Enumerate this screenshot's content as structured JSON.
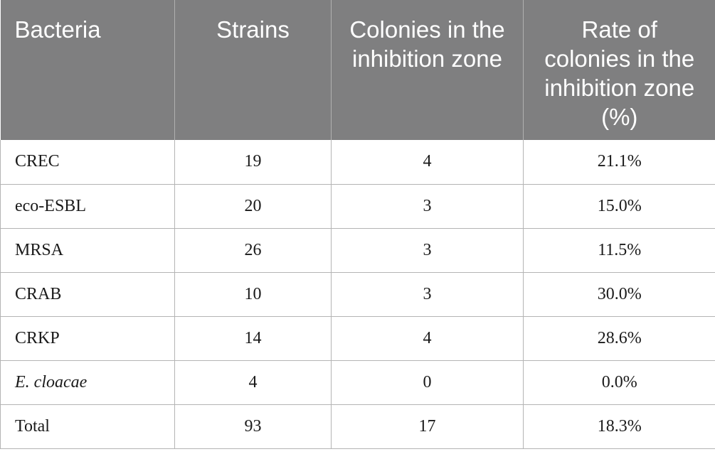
{
  "table": {
    "header": [
      "Bacteria",
      "Strains",
      "Colonies in the inhibition zone",
      "Rate of colonies in the inhibition zone (%)"
    ],
    "rows": [
      [
        "CREC",
        19,
        4,
        "21.1%"
      ],
      [
        "eco-ESBL",
        20,
        3,
        "15.0%"
      ],
      [
        "MRSA",
        26,
        3,
        "11.5%"
      ],
      [
        "CRAB",
        10,
        3,
        "30.0%"
      ],
      [
        "CRKP",
        14,
        4,
        "28.6%"
      ],
      [
        "E. cloacae",
        4,
        0,
        "0.0%"
      ],
      [
        "Total",
        93,
        17,
        "18.3%"
      ]
    ]
  }
}
